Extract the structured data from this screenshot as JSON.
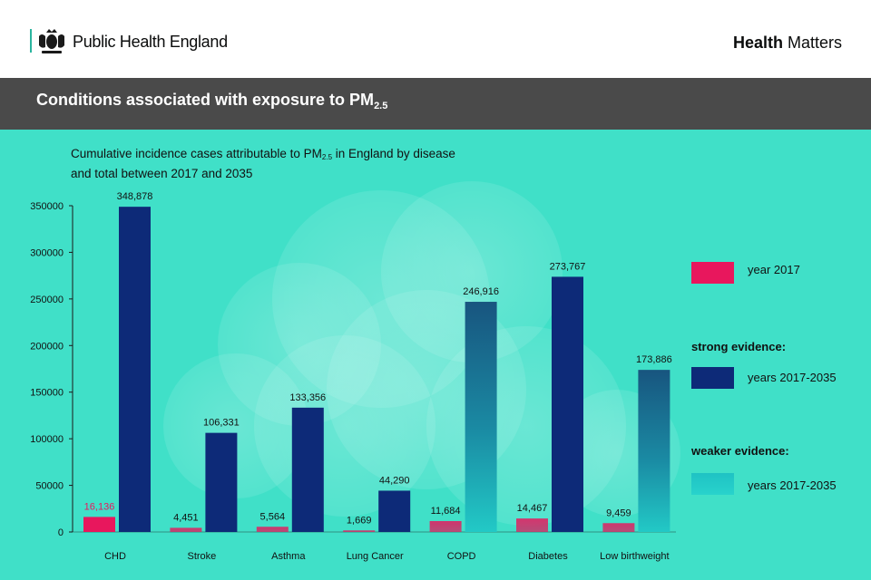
{
  "header": {
    "org_name": "Public Health England",
    "brand_bold": "Health",
    "brand_rest": " Matters",
    "crest_icon": "royal-crest-icon"
  },
  "title_bar": {
    "title_main": "Conditions associated with exposure to PM",
    "title_sub": "2.5"
  },
  "subtitle": {
    "part1": "Cumulative incidence cases attributable to PM",
    "sub": "2.5",
    "part2": " in England by disease and total between 2017 and 2035"
  },
  "colors": {
    "background": "#40e0c8",
    "year2017": "#e8175d",
    "strong": "#0d2a78",
    "weaker": "#1fc2c4",
    "bar_label_2017_highlight": "#e8175d"
  },
  "chart_data": {
    "type": "bar",
    "categories": [
      "CHD",
      "Stroke",
      "Asthma",
      "Lung Cancer",
      "COPD",
      "Diabetes",
      "Low birthweight"
    ],
    "series": [
      {
        "name": "year 2017",
        "values": [
          16136,
          4451,
          5564,
          1669,
          11684,
          14467,
          9459
        ],
        "labels": [
          "16,136",
          "4,451",
          "5,564",
          "1,669",
          "11,684",
          "14,467",
          "9,459"
        ]
      },
      {
        "name": "years 2017-2035",
        "evidence": [
          "strong",
          "strong",
          "strong",
          "strong",
          "weaker",
          "strong",
          "weaker"
        ],
        "values": [
          348878,
          106331,
          133356,
          44290,
          246916,
          273767,
          173886
        ],
        "labels": [
          "348,878",
          "106,331",
          "133,356",
          "44,290",
          "246,916",
          "273,767",
          "173,886"
        ]
      }
    ],
    "yticks": [
      "0",
      "50000",
      "100000",
      "150000",
      "200000",
      "250000",
      "300000",
      "350000"
    ],
    "ylim": [
      0,
      350000
    ],
    "grid": false
  },
  "legend": {
    "year2017_label": "year 2017",
    "strong_heading": "strong evidence:",
    "strong_label": "years 2017-2035",
    "weaker_heading": "weaker evidence:",
    "weaker_label": "years 2017-2035"
  }
}
